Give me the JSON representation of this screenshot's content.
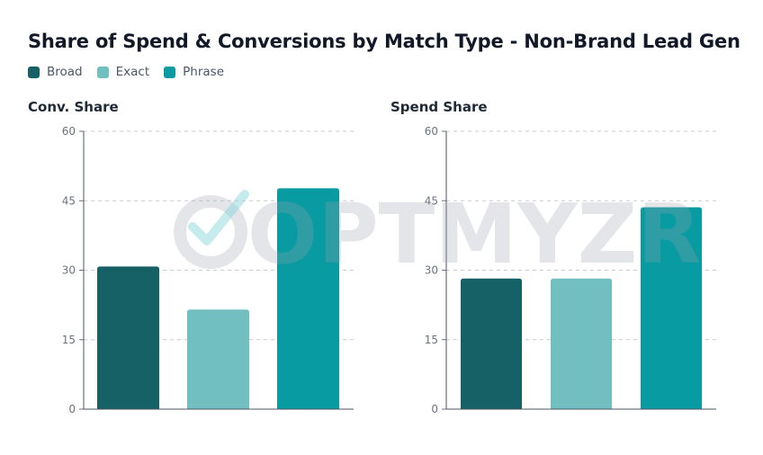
{
  "title": "Share of Spend & Conversions by Match Type - Non-Brand Lead Gen",
  "watermark": "OPTMYZR",
  "legend": [
    {
      "label": "Broad",
      "color": "#156166"
    },
    {
      "label": "Exact",
      "color": "#72bfc2"
    },
    {
      "label": "Phrase",
      "color": "#089ba1"
    }
  ],
  "chart_data": [
    {
      "type": "bar",
      "title": "Conv. Share",
      "categories": [
        "Broad",
        "Exact",
        "Phrase"
      ],
      "values": [
        30.8,
        21.5,
        47.7
      ],
      "colors": [
        "#156166",
        "#72bfc2",
        "#089ba1"
      ],
      "ylim": [
        0,
        60
      ],
      "yticks": [
        0,
        15,
        30,
        45,
        60
      ],
      "grid": true,
      "legend": "top-left"
    },
    {
      "type": "bar",
      "title": "Spend Share",
      "categories": [
        "Broad",
        "Exact",
        "Phrase"
      ],
      "values": [
        28.2,
        28.2,
        43.6
      ],
      "colors": [
        "#156166",
        "#72bfc2",
        "#089ba1"
      ],
      "ylim": [
        0,
        60
      ],
      "yticks": [
        0,
        15,
        30,
        45,
        60
      ],
      "grid": true,
      "legend": "top-left"
    }
  ]
}
